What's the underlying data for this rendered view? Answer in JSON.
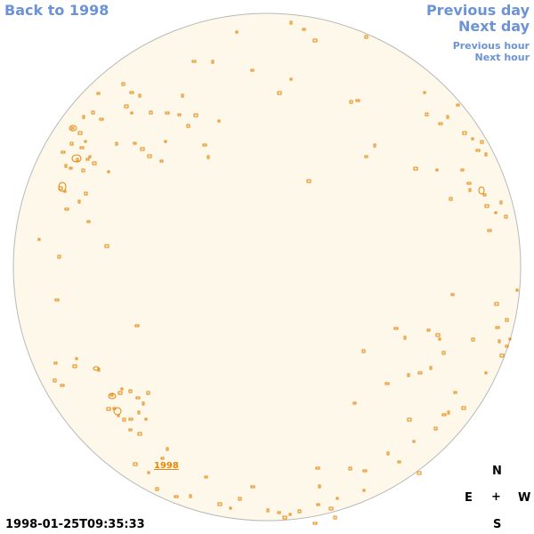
{
  "nav": {
    "back_label": "Back to 1998",
    "previous_day_label": "Previous day",
    "next_day_label": "Next day",
    "previous_hour_label": "Previous hour",
    "next_hour_label": "Next hour"
  },
  "timestamp": "1998-01-25T09:35:33",
  "compass": {
    "north": "N",
    "east": "E",
    "west": "W",
    "south": "S",
    "center": "+"
  },
  "region_label": "1998",
  "colors": {
    "disk_fill": "#fdf8ea",
    "disk_border": "#b9b9b9",
    "contour": "#e8860a",
    "link": "#6b93d6"
  }
}
